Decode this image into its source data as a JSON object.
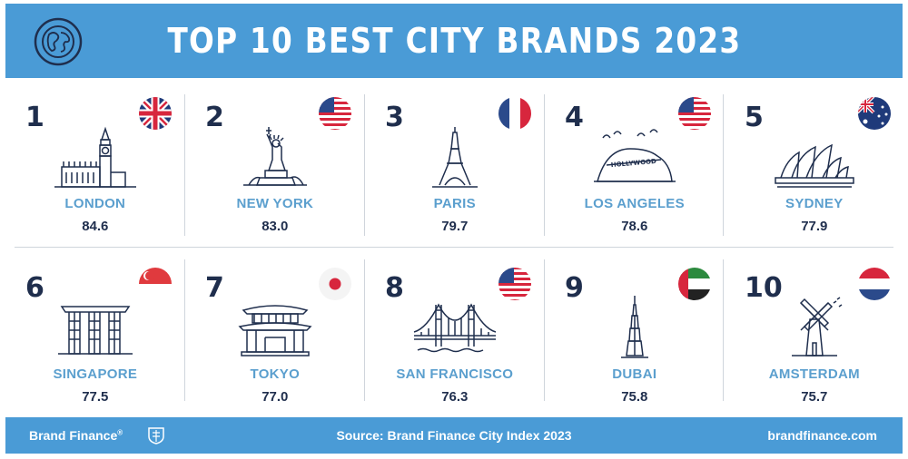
{
  "header": {
    "title": "TOP 10 BEST CITY BRANDS 2023",
    "globe_icon": "globe-icon",
    "color": "#4a9bd6"
  },
  "cities": [
    {
      "rank": "1",
      "name": "LONDON",
      "score": "84.6",
      "flag": "uk-flag-icon",
      "landmark": "big-ben-icon"
    },
    {
      "rank": "2",
      "name": "NEW YORK",
      "score": "83.0",
      "flag": "usa-flag-icon",
      "landmark": "statue-of-liberty-icon"
    },
    {
      "rank": "3",
      "name": "PARIS",
      "score": "79.7",
      "flag": "france-flag-icon",
      "landmark": "eiffel-tower-icon"
    },
    {
      "rank": "4",
      "name": "LOS ANGELES",
      "score": "78.6",
      "flag": "usa-flag-icon",
      "landmark": "hollywood-sign-icon"
    },
    {
      "rank": "5",
      "name": "SYDNEY",
      "score": "77.9",
      "flag": "australia-flag-icon",
      "landmark": "sydney-opera-house-icon"
    },
    {
      "rank": "6",
      "name": "SINGAPORE",
      "score": "77.5",
      "flag": "singapore-flag-icon",
      "landmark": "marina-bay-sands-icon"
    },
    {
      "rank": "7",
      "name": "TOKYO",
      "score": "77.0",
      "flag": "japan-flag-icon",
      "landmark": "japanese-pagoda-icon"
    },
    {
      "rank": "8",
      "name": "SAN FRANCISCO",
      "score": "76.3",
      "flag": "usa-flag-icon",
      "landmark": "golden-gate-bridge-icon"
    },
    {
      "rank": "9",
      "name": "DUBAI",
      "score": "75.8",
      "flag": "uae-flag-icon",
      "landmark": "burj-khalifa-icon"
    },
    {
      "rank": "10",
      "name": "AMSTERDAM",
      "score": "75.7",
      "flag": "netherlands-flag-icon",
      "landmark": "windmill-icon"
    }
  ],
  "footer": {
    "brand": "Brand Finance",
    "brand_mark": "®",
    "source": "Source: Brand Finance City Index 2023",
    "site": "brandfinance.com"
  },
  "colors": {
    "accent": "#4a9bd6",
    "navy": "#1f2e4d",
    "city_label": "#5b9fce"
  }
}
